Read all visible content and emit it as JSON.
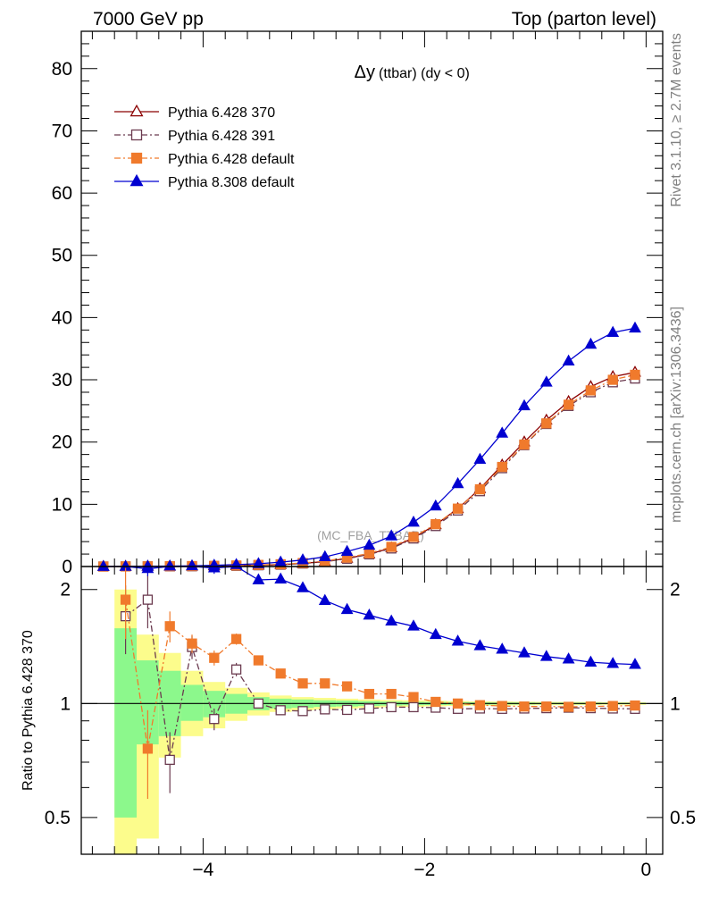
{
  "header": {
    "left": "7000 GeV pp",
    "right": "Top (parton level)"
  },
  "side_labels": {
    "rivet": "Rivet 3.1.10, ≥ 2.7M events",
    "mcplots": "mcplots.cern.ch [arXiv:1306.3436]"
  },
  "chart_data": [
    {
      "type": "line",
      "panel": "main",
      "title": "Δy (ttbar) (dy < 0)",
      "title_main": "Δy",
      "title_sub": "(ttbar) (dy < 0)",
      "watermark": "(MC_FBA_TTBAR)",
      "xlim": [
        -5.1,
        0.15
      ],
      "ylim": [
        0,
        86
      ],
      "yticks": [
        0,
        10,
        20,
        30,
        40,
        50,
        60,
        70,
        80
      ],
      "legend_position": "top-left",
      "x": [
        -4.9,
        -4.7,
        -4.5,
        -4.3,
        -4.1,
        -3.9,
        -3.7,
        -3.5,
        -3.3,
        -3.1,
        -2.9,
        -2.7,
        -2.5,
        -2.3,
        -2.1,
        -1.9,
        -1.7,
        -1.5,
        -1.3,
        -1.1,
        -0.9,
        -0.7,
        -0.5,
        -0.3,
        -0.1
      ],
      "series": [
        {
          "name": "Pythia 6.428 370",
          "color": "#8b0000",
          "marker": "open-triangle",
          "line": "solid",
          "values": [
            0.0,
            0.01,
            0.02,
            0.03,
            0.05,
            0.08,
            0.12,
            0.2,
            0.3,
            0.5,
            0.8,
            1.3,
            2.0,
            3.0,
            4.6,
            6.7,
            9.3,
            12.5,
            16.3,
            20.0,
            23.5,
            26.5,
            28.9,
            30.5,
            31.2
          ]
        },
        {
          "name": "Pythia 6.428 391",
          "color": "#6b3a4f",
          "marker": "open-square",
          "line": "dash-dot",
          "values": [
            0.0,
            0.01,
            0.02,
            0.02,
            0.04,
            0.07,
            0.11,
            0.2,
            0.29,
            0.48,
            0.77,
            1.25,
            1.95,
            2.9,
            4.5,
            6.5,
            9.0,
            12.1,
            15.8,
            19.5,
            22.9,
            25.8,
            28.0,
            29.6,
            30.2
          ]
        },
        {
          "name": "Pythia 6.428 default",
          "color": "#f07a2c",
          "marker": "filled-square",
          "line": "dash-dot",
          "values": [
            0.0,
            0.02,
            0.03,
            0.05,
            0.07,
            0.1,
            0.17,
            0.26,
            0.36,
            0.56,
            0.88,
            1.43,
            2.12,
            3.15,
            4.75,
            6.8,
            9.3,
            12.4,
            16.0,
            19.6,
            23.0,
            26.0,
            28.3,
            30.0,
            30.8
          ]
        },
        {
          "name": "Pythia 8.308 default",
          "color": "#0000d0",
          "marker": "filled-triangle",
          "line": "solid",
          "values": [
            0.0,
            0.02,
            0.05,
            0.07,
            0.1,
            0.2,
            0.3,
            0.45,
            0.7,
            1.05,
            1.55,
            2.4,
            3.4,
            4.9,
            7.1,
            9.7,
            13.3,
            17.2,
            21.4,
            25.8,
            29.6,
            33.0,
            35.7,
            37.6,
            38.3
          ]
        }
      ]
    },
    {
      "type": "line",
      "panel": "ratio",
      "ylabel": "Ratio to Pythia 6.428 370",
      "xlim": [
        -5.1,
        0.15
      ],
      "ylim": [
        0.4,
        2.3
      ],
      "ylog": true,
      "xticks": [
        -4,
        -2,
        0
      ],
      "xtick_labels": [
        "−4",
        "−2",
        "0"
      ],
      "yticks": [
        0.5,
        1,
        2
      ],
      "ytick_labels": [
        "0.5",
        "1",
        "2"
      ],
      "bands": {
        "x_edges": [
          -4.8,
          -4.6,
          -4.4,
          -4.2,
          -4.0,
          -3.8,
          -3.6,
          -3.4,
          -3.2,
          -3.0,
          -2.8,
          -2.6,
          -2.4,
          -2.2,
          -2.0,
          -1.8,
          -1.6,
          -1.4,
          -1.2,
          -1.0,
          -0.8,
          -0.6,
          -0.4,
          -0.2,
          0.0
        ],
        "green_lo": [
          0.5,
          0.78,
          0.82,
          0.9,
          0.92,
          0.94,
          0.96,
          0.97,
          0.975,
          0.98,
          0.982,
          0.985,
          0.988,
          0.99,
          0.991,
          0.992,
          0.993,
          0.994,
          0.994,
          0.995,
          0.995,
          0.995,
          0.996,
          0.996
        ],
        "green_hi": [
          1.58,
          1.3,
          1.22,
          1.12,
          1.08,
          1.06,
          1.04,
          1.03,
          1.025,
          1.02,
          1.018,
          1.015,
          1.012,
          1.01,
          1.009,
          1.008,
          1.007,
          1.006,
          1.006,
          1.005,
          1.005,
          1.005,
          1.004,
          1.004
        ],
        "yellow_lo": [
          0.3,
          0.44,
          0.72,
          0.82,
          0.86,
          0.9,
          0.93,
          0.95,
          0.96,
          0.965,
          0.97,
          0.974,
          0.978,
          0.98,
          0.983,
          0.985,
          0.987,
          0.988,
          0.989,
          0.99,
          0.99,
          0.991,
          0.992,
          0.992
        ],
        "yellow_hi": [
          2.0,
          1.52,
          1.36,
          1.22,
          1.14,
          1.1,
          1.07,
          1.05,
          1.04,
          1.035,
          1.03,
          1.025,
          1.022,
          1.02,
          1.017,
          1.015,
          1.013,
          1.012,
          1.011,
          1.01,
          1.01,
          1.009,
          1.008,
          1.008
        ]
      },
      "x": [
        -4.7,
        -4.5,
        -4.3,
        -4.1,
        -3.9,
        -3.7,
        -3.5,
        -3.3,
        -3.1,
        -2.9,
        -2.7,
        -2.5,
        -2.3,
        -2.1,
        -1.9,
        -1.7,
        -1.5,
        -1.3,
        -1.1,
        -0.9,
        -0.7,
        -0.5,
        -0.3,
        -0.1
      ],
      "series": [
        {
          "name": "Pythia 6.428 391",
          "color": "#6b3a4f",
          "marker": "open-square",
          "line": "dash-dot",
          "values": [
            1.7,
            1.88,
            0.71,
            1.41,
            0.91,
            1.23,
            1.0,
            0.96,
            0.955,
            0.965,
            0.962,
            0.97,
            0.978,
            0.978,
            0.975,
            0.968,
            0.97,
            0.968,
            0.97,
            0.972,
            0.975,
            0.972,
            0.97,
            0.968
          ],
          "err": [
            0.35,
            0.3,
            0.13,
            0.1,
            0.06,
            0.05,
            0.02,
            0.01,
            0.01,
            0.01,
            0.01,
            0.01,
            0.01,
            0.01,
            0.01,
            0.01,
            0.01,
            0.01,
            0.01,
            0.01,
            0.01,
            0.01,
            0.01,
            0.01
          ]
        },
        {
          "name": "Pythia 6.428 default",
          "color": "#f07a2c",
          "marker": "filled-square",
          "line": "dash-dot",
          "values": [
            1.88,
            0.76,
            1.6,
            1.44,
            1.32,
            1.48,
            1.3,
            1.2,
            1.13,
            1.13,
            1.11,
            1.06,
            1.06,
            1.04,
            1.01,
            1.0,
            0.99,
            0.985,
            0.982,
            0.982,
            0.98,
            0.982,
            0.985,
            0.988
          ],
          "err": [
            0.4,
            0.2,
            0.15,
            0.08,
            0.06,
            0.05,
            0.03,
            0.02,
            0.01,
            0.01,
            0.01,
            0.01,
            0.01,
            0.01,
            0.01,
            0.01,
            0.01,
            0.01,
            0.01,
            0.01,
            0.01,
            0.01,
            0.01,
            0.01
          ]
        },
        {
          "name": "Pythia 8.308 default",
          "color": "#0000d0",
          "marker": "filled-triangle",
          "line": "solid",
          "values": [
            2.8,
            2.27,
            2.43,
            3.0,
            2.28,
            2.6,
            2.12,
            2.13,
            2.02,
            1.87,
            1.77,
            1.71,
            1.65,
            1.6,
            1.52,
            1.46,
            1.42,
            1.39,
            1.36,
            1.33,
            1.31,
            1.285,
            1.275,
            1.268
          ],
          "err": [
            0.5,
            0.1,
            0.1,
            0.2,
            0.08,
            0.06,
            0.04,
            0.03,
            0.02,
            0.01,
            0.01,
            0.01,
            0.01,
            0.01,
            0.01,
            0.01,
            0.01,
            0.01,
            0.01,
            0.01,
            0.01,
            0.01,
            0.01,
            0.01
          ]
        }
      ]
    }
  ]
}
